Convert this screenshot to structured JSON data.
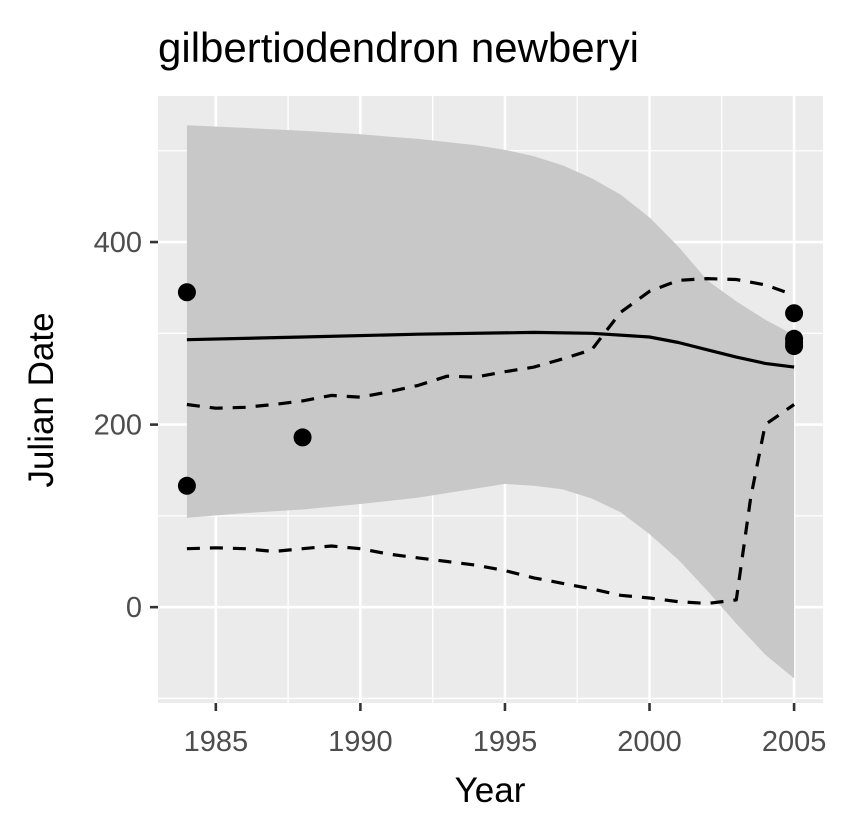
{
  "chart_data": {
    "type": "line",
    "title": "gilbertiodendron newberyi",
    "xlabel": "Year",
    "ylabel": "Julian Date",
    "xlim": [
      1983,
      2006
    ],
    "ylim": [
      -105,
      560
    ],
    "x_ticks": [
      1985,
      1990,
      1995,
      2000,
      2005
    ],
    "y_ticks": [
      0,
      200,
      400
    ],
    "grid": true,
    "background": "#ebebeb",
    "ribbon_color": "#c8c8c8",
    "points": [
      {
        "x": 1984,
        "y": 345
      },
      {
        "x": 1984,
        "y": 133
      },
      {
        "x": 1988,
        "y": 186
      },
      {
        "x": 2005,
        "y": 322
      },
      {
        "x": 2005,
        "y": 294
      },
      {
        "x": 2005,
        "y": 290
      },
      {
        "x": 2005,
        "y": 286
      }
    ],
    "ribbon": {
      "x": [
        1984,
        1986,
        1988,
        1990,
        1992,
        1994,
        1995,
        1996,
        1997,
        1998,
        1999,
        2000,
        2001,
        2002,
        2003,
        2004,
        2005
      ],
      "upper": [
        528,
        525,
        522,
        518,
        513,
        506,
        501,
        494,
        484,
        470,
        452,
        427,
        395,
        358,
        335,
        315,
        298
      ],
      "lower": [
        98,
        103,
        107,
        113,
        120,
        130,
        135,
        133,
        129,
        119,
        104,
        80,
        52,
        18,
        -18,
        -52,
        -78
      ]
    },
    "series": [
      {
        "style": "solid",
        "x": [
          1984,
          1988,
          1992,
          1996,
          1998,
          2000,
          2001,
          2002,
          2003,
          2004,
          2005
        ],
        "y": [
          293,
          296,
          299,
          301,
          300,
          296,
          290,
          282,
          274,
          267,
          263
        ]
      },
      {
        "style": "dashed",
        "x": [
          1984,
          1985,
          1986,
          1987,
          1988,
          1989,
          1990,
          1991,
          1992,
          1993,
          1994,
          1995,
          1996,
          1997,
          1998,
          1999,
          2000,
          2001,
          2002,
          2003,
          2004,
          2005
        ],
        "y": [
          222,
          218,
          219,
          222,
          226,
          232,
          230,
          236,
          243,
          253,
          252,
          258,
          263,
          272,
          282,
          323,
          346,
          358,
          360,
          359,
          353,
          342
        ]
      },
      {
        "style": "dashed",
        "x": [
          1984,
          1985,
          1986,
          1987,
          1988,
          1989,
          1990,
          1991,
          1992,
          1993,
          1994,
          1995,
          1996,
          1997,
          1998,
          1999,
          2000,
          2001,
          2002,
          2003,
          2003.5,
          2004,
          2005
        ],
        "y": [
          64,
          65,
          64,
          61,
          64,
          67,
          64,
          58,
          54,
          50,
          46,
          40,
          32,
          26,
          20,
          13,
          10,
          6,
          4,
          8,
          120,
          200,
          222
        ]
      }
    ]
  }
}
